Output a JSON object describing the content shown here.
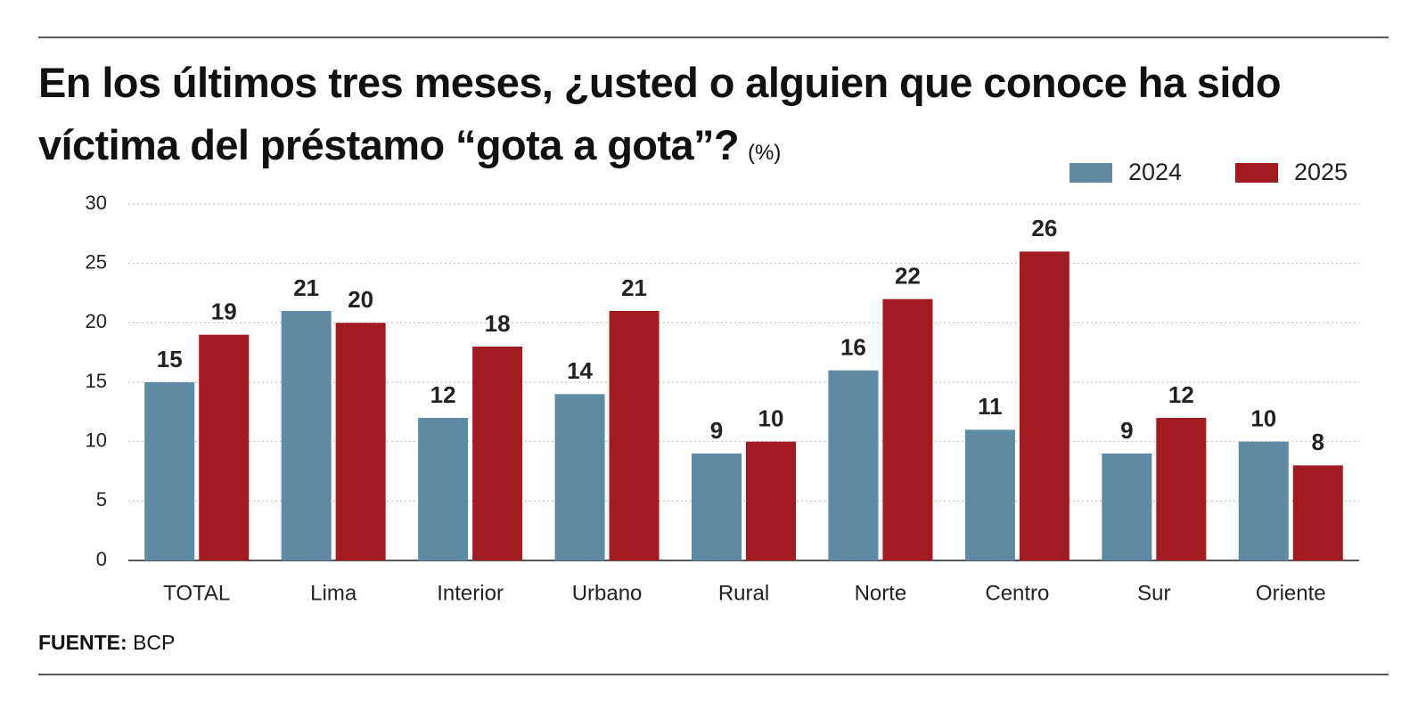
{
  "chart_data": {
    "type": "bar",
    "title": "En los últimos tres meses, ¿usted o alguien que conoce ha sido víctima del préstamo “gota a gota”?",
    "unit": "(%)",
    "categories": [
      "TOTAL",
      "Lima",
      "Interior",
      "Urbano",
      "Rural",
      "Norte",
      "Centro",
      "Sur",
      "Oriente"
    ],
    "series": [
      {
        "name": "2024",
        "color": "#5e8aa3",
        "values": [
          15,
          21,
          12,
          14,
          9,
          16,
          11,
          9,
          10
        ]
      },
      {
        "name": "2025",
        "color": "#a11b20",
        "values": [
          19,
          20,
          18,
          21,
          10,
          22,
          26,
          12,
          8
        ]
      }
    ],
    "ylim": [
      0,
      30
    ],
    "yticks": [
      0,
      5,
      10,
      15,
      20,
      25,
      30
    ],
    "grid": true,
    "legend": "top-right",
    "source_label": "FUENTE:",
    "source": "BCP"
  }
}
